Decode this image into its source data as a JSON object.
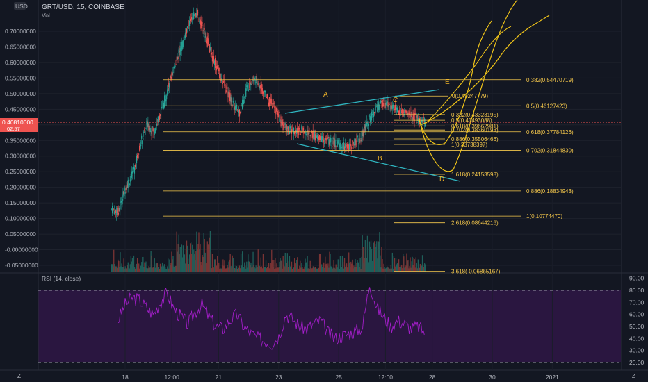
{
  "header": {
    "symbol": "GRT/USD, 15, COINBASE",
    "volume_label": "Vol",
    "currency_badge": "USD"
  },
  "price_marker": {
    "value": "0.40810000",
    "countdown": "02:57"
  },
  "rsi": {
    "label": "RSI (14, close)"
  },
  "corner": {
    "left_icon": "Z",
    "right_icon": "Z"
  },
  "chart_data": [
    {
      "type": "line",
      "title": "GRT/USD, 15, COINBASE",
      "ylim": [
        -0.07,
        0.78
      ],
      "y_ticks": [
        0.7,
        0.65,
        0.6,
        0.55,
        0.5,
        0.45,
        0.4,
        0.35,
        0.3,
        0.25,
        0.2,
        0.15,
        0.1,
        0.05,
        -0.0,
        -0.05
      ],
      "y_tick_labels": [
        "0.70000000",
        "0.65000000",
        "0.60000000",
        "0.55000000",
        "0.50000000",
        "0.45000000",
        "0.40000000",
        "0.35000000",
        "0.30000000",
        "0.25000000",
        "0.20000000",
        "0.15000000",
        "0.10000000",
        "0.05000000",
        "-0.00000000",
        "-0.05000000"
      ],
      "x_tick_labels": [
        "18",
        "12:00",
        "21",
        "23",
        "25",
        "12:00",
        "28",
        "30",
        "2021"
      ],
      "x_tick_index": [
        0,
        7,
        14,
        23,
        32,
        39,
        46,
        55,
        64
      ],
      "series": [
        {
          "close": [
            0.13,
            0.12,
            0.2,
            0.24,
            0.33,
            0.4,
            0.38,
            0.44,
            0.52,
            0.6,
            0.66,
            0.73,
            0.76,
            0.7,
            0.63,
            0.57,
            0.52,
            0.47,
            0.44,
            0.52,
            0.55,
            0.52,
            0.48,
            0.45,
            0.4,
            0.38,
            0.38,
            0.38,
            0.37,
            0.36,
            0.35,
            0.345,
            0.335,
            0.33,
            0.34,
            0.36,
            0.41,
            0.45,
            0.47,
            0.46,
            0.45,
            0.44,
            0.43,
            0.42,
            0.408
          ]
        }
      ],
      "fib_levels": [
        {
          "label": "0.382(0.54470719)",
          "value": 0.54470719
        },
        {
          "label": "0(0.49247779)",
          "value": 0.49247779
        },
        {
          "label": "0.5(0.46127423)",
          "value": 0.46127423
        },
        {
          "label": "0.382(0.43323195)",
          "value": 0.43323195
        },
        {
          "label": "0.5(0.41493088)",
          "value": 0.41493088
        },
        {
          "label": "0.618(0.39662981)",
          "value": 0.39662981
        },
        {
          "label": "0.702(0.38360193)",
          "value": 0.38360193
        },
        {
          "label": "0.618(0.37784126)",
          "value": 0.37784126
        },
        {
          "label": "0.886(0.35506466)",
          "value": 0.35506466
        },
        {
          "label": "1(0.33738397)",
          "value": 0.33738397
        },
        {
          "label": "0.702(0.31844830)",
          "value": 0.3184483
        },
        {
          "label": "1.618(0.24153598)",
          "value": 0.24153598
        },
        {
          "label": "0.886(0.18834943)",
          "value": 0.18834943
        },
        {
          "label": "1(0.10774470)",
          "value": 0.1077447
        },
        {
          "label": "2.618(0.08644216)",
          "value": 0.08644216
        },
        {
          "label": "3.618(-0.06865167)",
          "value": -0.06865167
        }
      ],
      "wave_labels": [
        "A",
        "B",
        "C",
        "D",
        "E"
      ],
      "colors": {
        "up": "#26a69a",
        "down": "#ef5350",
        "fib": "#f5c84c",
        "trend": "#2fb5c0",
        "projection": "#f0c419"
      }
    },
    {
      "type": "line",
      "title": "RSI (14, close)",
      "ylim": [
        15,
        92
      ],
      "y_ticks": [
        90,
        80,
        70,
        60,
        50,
        40,
        30,
        20
      ],
      "y_tick_labels": [
        "90.00",
        "80.00",
        "70.00",
        "60.00",
        "50.00",
        "40.00",
        "30.00",
        "20.00"
      ],
      "bands": [
        80,
        20
      ],
      "series": [
        {
          "values": [
            55,
            68,
            74,
            72,
            66,
            60,
            70,
            78,
            64,
            58,
            52,
            62,
            68,
            58,
            50,
            48,
            55,
            60,
            50,
            44,
            40,
            38,
            36,
            42,
            60,
            56,
            50,
            48,
            52,
            55,
            45,
            40,
            42,
            44,
            46,
            50,
            86,
            66,
            58,
            50,
            55,
            52,
            48,
            50,
            45
          ],
          "color": "#a31ec9"
        }
      ]
    }
  ]
}
